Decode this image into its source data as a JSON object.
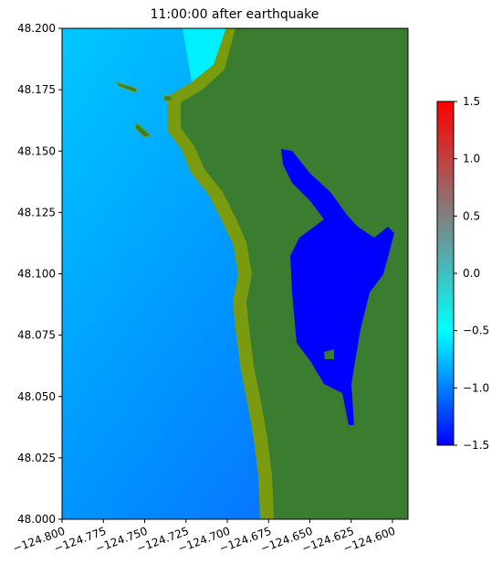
{
  "chart_data": {
    "type": "map",
    "title": "11:00:00 after earthquake",
    "xlim": [
      -124.8,
      -124.5906
    ],
    "ylim": [
      48.0,
      48.2
    ],
    "xticks": [
      {
        "value": -124.8,
        "label": "−124.800"
      },
      {
        "value": -124.775,
        "label": "−124.775"
      },
      {
        "value": -124.75,
        "label": "−124.750"
      },
      {
        "value": -124.725,
        "label": "−124.725"
      },
      {
        "value": -124.7,
        "label": "−124.700"
      },
      {
        "value": -124.675,
        "label": "−124.675"
      },
      {
        "value": -124.65,
        "label": "−124.650"
      },
      {
        "value": -124.625,
        "label": "−124.625"
      },
      {
        "value": -124.6,
        "label": "−124.600"
      }
    ],
    "yticks": [
      {
        "value": 48.0,
        "label": "48.000"
      },
      {
        "value": 48.025,
        "label": "48.025"
      },
      {
        "value": 48.05,
        "label": "48.050"
      },
      {
        "value": 48.075,
        "label": "48.075"
      },
      {
        "value": 48.1,
        "label": "48.100"
      },
      {
        "value": 48.125,
        "label": "48.125"
      },
      {
        "value": 48.15,
        "label": "48.150"
      },
      {
        "value": 48.175,
        "label": "48.175"
      },
      {
        "value": 48.2,
        "label": "48.200"
      }
    ],
    "colorbar": {
      "clim": [
        -1.5,
        1.5
      ],
      "ticks": [
        {
          "value": -1.5,
          "label": "−1.5"
        },
        {
          "value": -1.0,
          "label": "−1.0"
        },
        {
          "value": -0.5,
          "label": "−0.5"
        },
        {
          "value": 0.0,
          "label": "0.0"
        },
        {
          "value": 0.5,
          "label": "0.5"
        },
        {
          "value": 1.0,
          "label": "1.0"
        },
        1.5
      ],
      "colors": [
        "#0000ff",
        "#00ffff",
        "#808080",
        "#ff0000"
      ]
    }
  }
}
